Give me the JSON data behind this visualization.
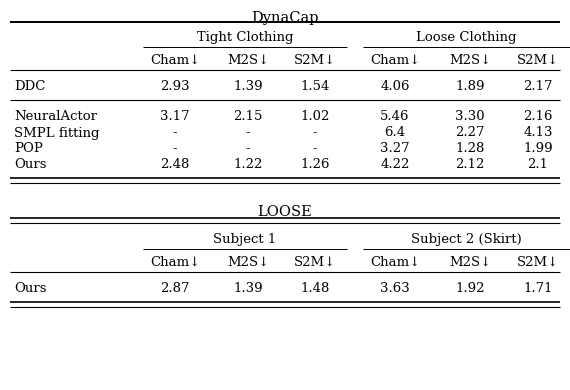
{
  "fig_width": 5.7,
  "fig_height": 3.9,
  "dpi": 100,
  "background_color": "#ffffff",
  "table1_title": "DynaCap",
  "table1_subheader1": "Tight Clothing",
  "table1_subheader2": "Loose Clothing",
  "table1_col_headers": [
    "Cham↓",
    "M2S↓",
    "S2M↓",
    "Cham↓",
    "M2S↓",
    "S2M↓"
  ],
  "table1_rows": [
    [
      "DDC",
      "2.93",
      "1.39",
      "1.54",
      "4.06",
      "1.89",
      "2.17"
    ],
    [
      "NeuralActor",
      "3.17",
      "2.15",
      "1.02",
      "5.46",
      "3.30",
      "2.16"
    ],
    [
      "SMPL fitting",
      "-",
      "-",
      "-",
      "6.4",
      "2.27",
      "4.13"
    ],
    [
      "POP",
      "-",
      "-",
      "-",
      "3.27",
      "1.28",
      "1.99"
    ],
    [
      "Ours",
      "2.48",
      "1.22",
      "1.26",
      "4.22",
      "2.12",
      "2.1"
    ]
  ],
  "table2_title": "LOOSE",
  "table2_subheader1": "Subject 1",
  "table2_subheader2": "Subject 2 (Skirt)",
  "table2_col_headers": [
    "Cham↓",
    "M2S↓",
    "S2M↓",
    "Cham↓",
    "M2S↓",
    "S2M↓"
  ],
  "table2_rows": [
    [
      "Ours",
      "2.87",
      "1.39",
      "1.48",
      "3.63",
      "1.92",
      "1.71"
    ]
  ],
  "fs": 9.5,
  "title_fs": 10.5
}
